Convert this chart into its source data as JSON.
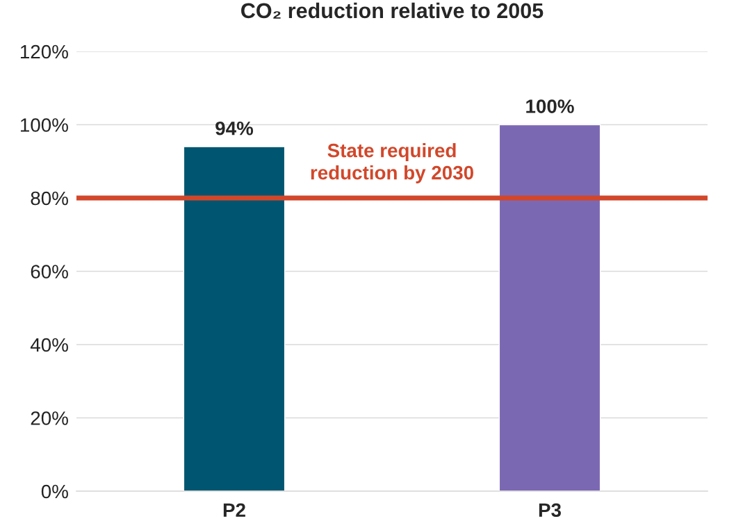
{
  "chart_data": {
    "type": "bar",
    "title": "CO₂ reduction relative to 2005",
    "categories": [
      "P2",
      "P3"
    ],
    "values": [
      94,
      100
    ],
    "colors": [
      "#005670",
      "#7b68b3"
    ],
    "value_labels": [
      "94%",
      "100%"
    ],
    "ylim": [
      0,
      120
    ],
    "yticks": [
      {
        "value": 0,
        "label": "0%"
      },
      {
        "value": 20,
        "label": "20%"
      },
      {
        "value": 40,
        "label": "40%"
      },
      {
        "value": 60,
        "label": "60%"
      },
      {
        "value": 80,
        "label": "80%"
      },
      {
        "value": 100,
        "label": "100%"
      },
      {
        "value": 120,
        "label": "120%"
      }
    ],
    "grid": "y",
    "ref_lines": [
      {
        "axis": "y",
        "value": 80,
        "label": "State required\nreduction by 2030",
        "color": "#d2472a"
      }
    ]
  }
}
